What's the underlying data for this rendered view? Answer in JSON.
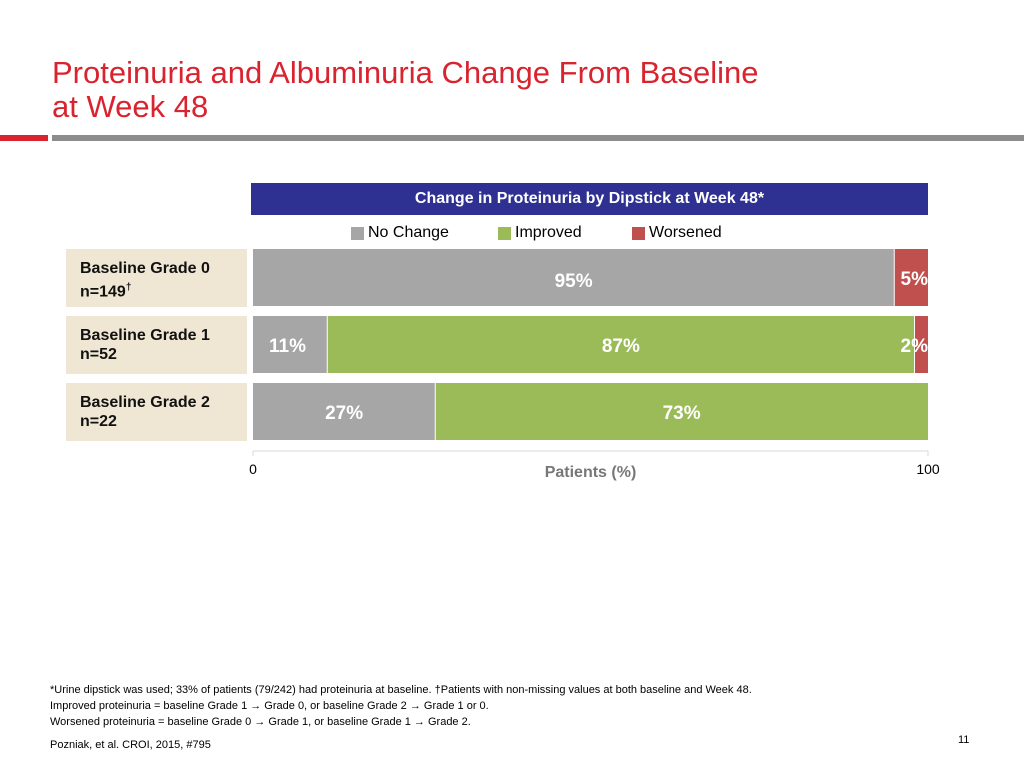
{
  "slide": {
    "title_line1": "Proteinuria and Albuminuria Change From Baseline",
    "title_line2": "at Week 48",
    "page_number": "11",
    "citation": "Pozniak, et al. CROI, 2015, #795"
  },
  "colors": {
    "accent_red": "#d9232e",
    "header_blue": "#2e3192",
    "no_change": "#a6a6a6",
    "improved": "#9bbb59",
    "worsened": "#c0504d"
  },
  "rows": [
    {
      "label": "Baseline Grade 0",
      "n_text": "n=149",
      "dagger": "†"
    },
    {
      "label": "Baseline Grade 1",
      "n_text": "n=52",
      "dagger": ""
    },
    {
      "label": "Baseline Grade 2",
      "n_text": "n=22",
      "dagger": ""
    }
  ],
  "chart_data": {
    "type": "bar",
    "orientation": "horizontal",
    "stacked": true,
    "title": "Change in Proteinuria by Dipstick at Week 48*",
    "categories": [
      "Baseline Grade 0 n=149†",
      "Baseline Grade 1 n=52",
      "Baseline Grade 2 n=22"
    ],
    "series": [
      {
        "name": "No Change",
        "values": [
          95,
          11,
          27
        ],
        "labels": [
          "95%",
          "11%",
          "27%"
        ]
      },
      {
        "name": "Improved",
        "values": [
          0,
          87,
          73
        ],
        "labels": [
          "",
          "87%",
          "73%"
        ]
      },
      {
        "name": "Worsened",
        "values": [
          5,
          2,
          0
        ],
        "labels": [
          "5%",
          "2%",
          ""
        ]
      }
    ],
    "xlabel": "Patients (%)",
    "xlim": [
      0,
      100
    ],
    "xticks": [
      "0",
      "100"
    ],
    "legend_position": "top"
  },
  "footnotes": [
    "*Urine dipstick was used; 33% of patients (79/242) had proteinuria at baseline. †Patients with non-missing values at both baseline and Week 48.",
    "Improved proteinuria = baseline Grade 1 → Grade 0, or baseline Grade 2 → Grade 1 or 0.",
    "Worsened proteinuria = baseline Grade 0 → Grade 1, or baseline Grade 1 → Grade 2."
  ]
}
